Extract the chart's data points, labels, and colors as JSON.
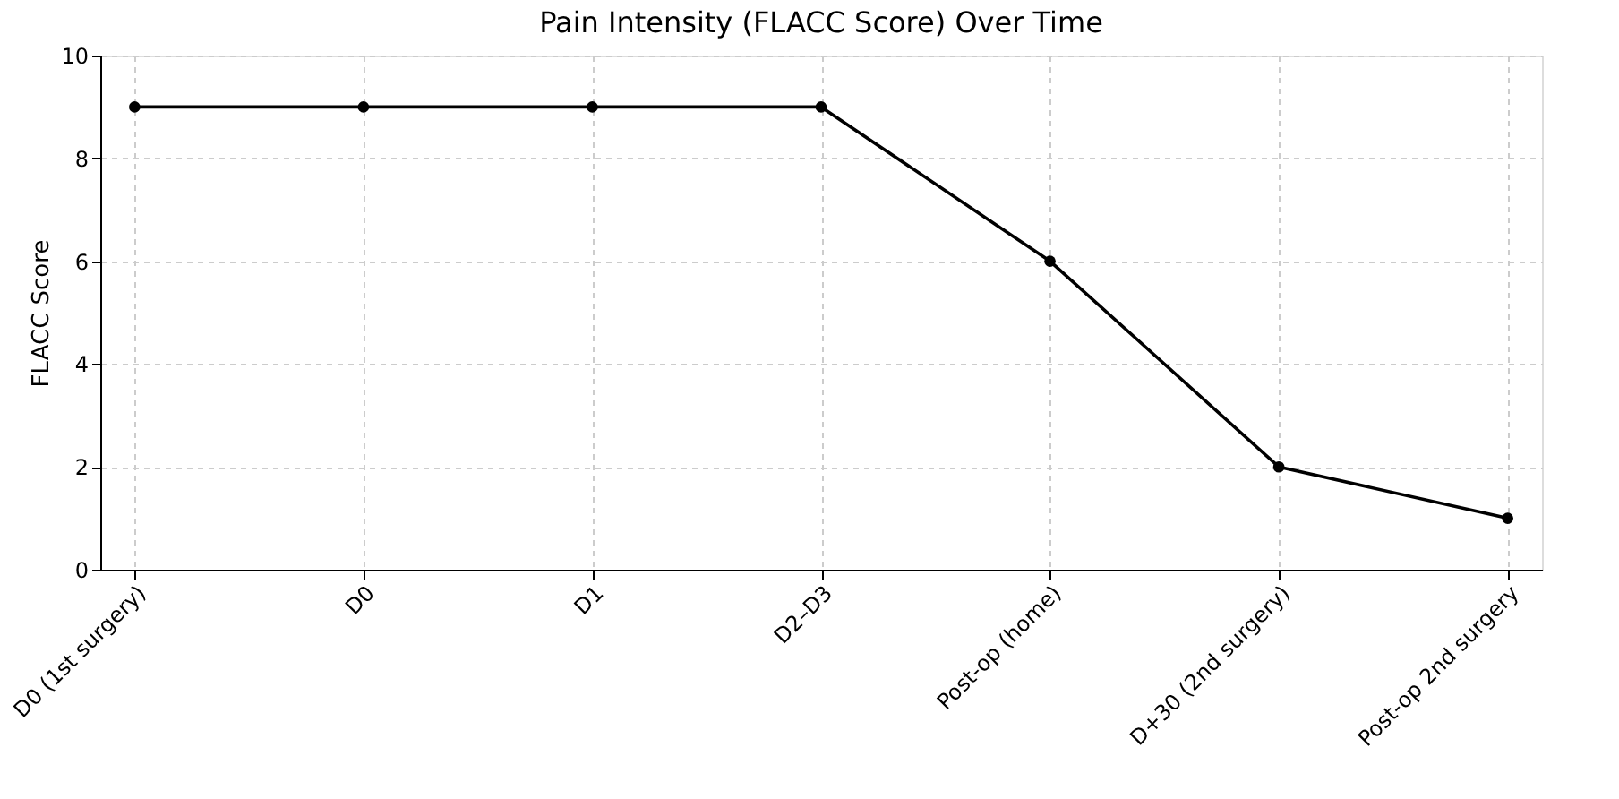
{
  "chart_data": {
    "type": "line",
    "title": "Pain Intensity (FLACC Score) Over Time",
    "ylabel": "FLACC Score",
    "categories": [
      "D0 (1st surgery)",
      "D0",
      "D1",
      "D2–D3",
      "Post-op (home)",
      "D+30 (2nd surgery)",
      "Post-op 2nd surgery"
    ],
    "series": [
      {
        "color": "#000000",
        "values": [
          9,
          9,
          9,
          9,
          6,
          2,
          1
        ]
      }
    ],
    "ylim": [
      0,
      10
    ],
    "yticks": [
      0,
      2,
      4,
      6,
      8,
      10
    ],
    "grid": true,
    "marker": "circle",
    "line_style": "solid"
  }
}
